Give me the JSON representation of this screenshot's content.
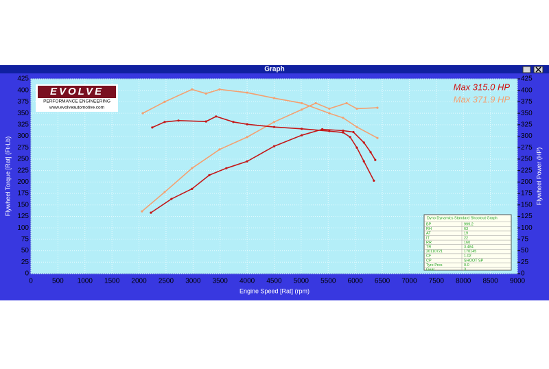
{
  "window": {
    "title": "Graph"
  },
  "logo": {
    "brand": "EVOLVE",
    "tagline": "PERFORMANCE ENGINEERING",
    "url": "www.evolveautomotive.com"
  },
  "info_table": {
    "title": "Dyno Dynamics Standard Shootout Graph",
    "rows": [
      [
        "BP",
        "999.2"
      ],
      [
        "RH",
        "63"
      ],
      [
        "AT",
        "19"
      ],
      [
        "IT",
        "22"
      ],
      [
        "RR",
        "160"
      ],
      [
        "TR",
        "3.484"
      ],
      [
        "20110721",
        "170145"
      ],
      [
        "CF",
        "1.02"
      ],
      [
        "CP",
        "SHOOT SP"
      ],
      [
        "Tyre Pres",
        "0.0"
      ],
      [
        "Gear",
        "3"
      ]
    ]
  },
  "chart_data": {
    "type": "line",
    "xlabel": "Engine Speed [Rat] (rpm)",
    "ylabel": "Flywheel Torque [Rat] (Ft-Lb)",
    "y2label": "Flywheel Power (HP)",
    "xlim": [
      0,
      9000
    ],
    "xticks": [
      0,
      500,
      1000,
      1500,
      2000,
      2500,
      3000,
      3500,
      4000,
      4500,
      5000,
      5500,
      6000,
      6500,
      7000,
      7500,
      8000,
      8500,
      9000
    ],
    "ylim": [
      0,
      425
    ],
    "yticks": [
      0,
      25,
      50,
      75,
      100,
      125,
      150,
      175,
      200,
      225,
      250,
      275,
      300,
      325,
      350,
      375,
      400,
      425
    ],
    "y2lim": [
      0,
      425
    ],
    "y2ticks": [
      0,
      25,
      50,
      75,
      100,
      125,
      150,
      175,
      200,
      225,
      250,
      275,
      300,
      325,
      350,
      375,
      400,
      425
    ],
    "grid": true,
    "annotations": [
      {
        "text": "Max 315.0 HP",
        "color": "#d01010"
      },
      {
        "text": "Max 371.9 HP",
        "color": "#f4a070"
      }
    ],
    "series": [
      {
        "color": "#f4a070",
        "axis": "y",
        "x": [
          2070,
          2475,
          2980,
          3240,
          3490,
          4000,
          4500,
          5010,
          5520,
          5775,
          6030,
          6410
        ],
        "values": [
          350,
          375,
          402,
          393,
          402,
          395,
          383,
          372,
          350,
          340,
          320,
          296
        ]
      },
      {
        "color": "#f4a070",
        "axis": "y2",
        "x": [
          2055,
          2475,
          2980,
          3490,
          4000,
          4500,
          5010,
          5270,
          5520,
          5840,
          6030,
          6410
        ],
        "values": [
          136,
          178,
          230,
          271,
          298,
          331,
          358,
          372,
          360,
          372,
          360,
          362
        ]
      },
      {
        "color": "#c41818",
        "axis": "y",
        "x": [
          2245,
          2475,
          2730,
          3240,
          3425,
          3745,
          4000,
          4500,
          5010,
          5520,
          5775,
          5905,
          6030,
          6160,
          6345
        ],
        "values": [
          319,
          331,
          334,
          332,
          343,
          331,
          326,
          320,
          316,
          311,
          308,
          298,
          275,
          245,
          203
        ]
      },
      {
        "color": "#c41818",
        "axis": "y2",
        "x": [
          2220,
          2600,
          2980,
          3300,
          3615,
          4000,
          4500,
          5010,
          5390,
          5775,
          5965,
          6160,
          6285,
          6370
        ],
        "values": [
          133,
          163,
          185,
          215,
          230,
          245,
          278,
          302,
          315,
          312,
          309,
          286,
          265,
          248
        ]
      }
    ]
  }
}
